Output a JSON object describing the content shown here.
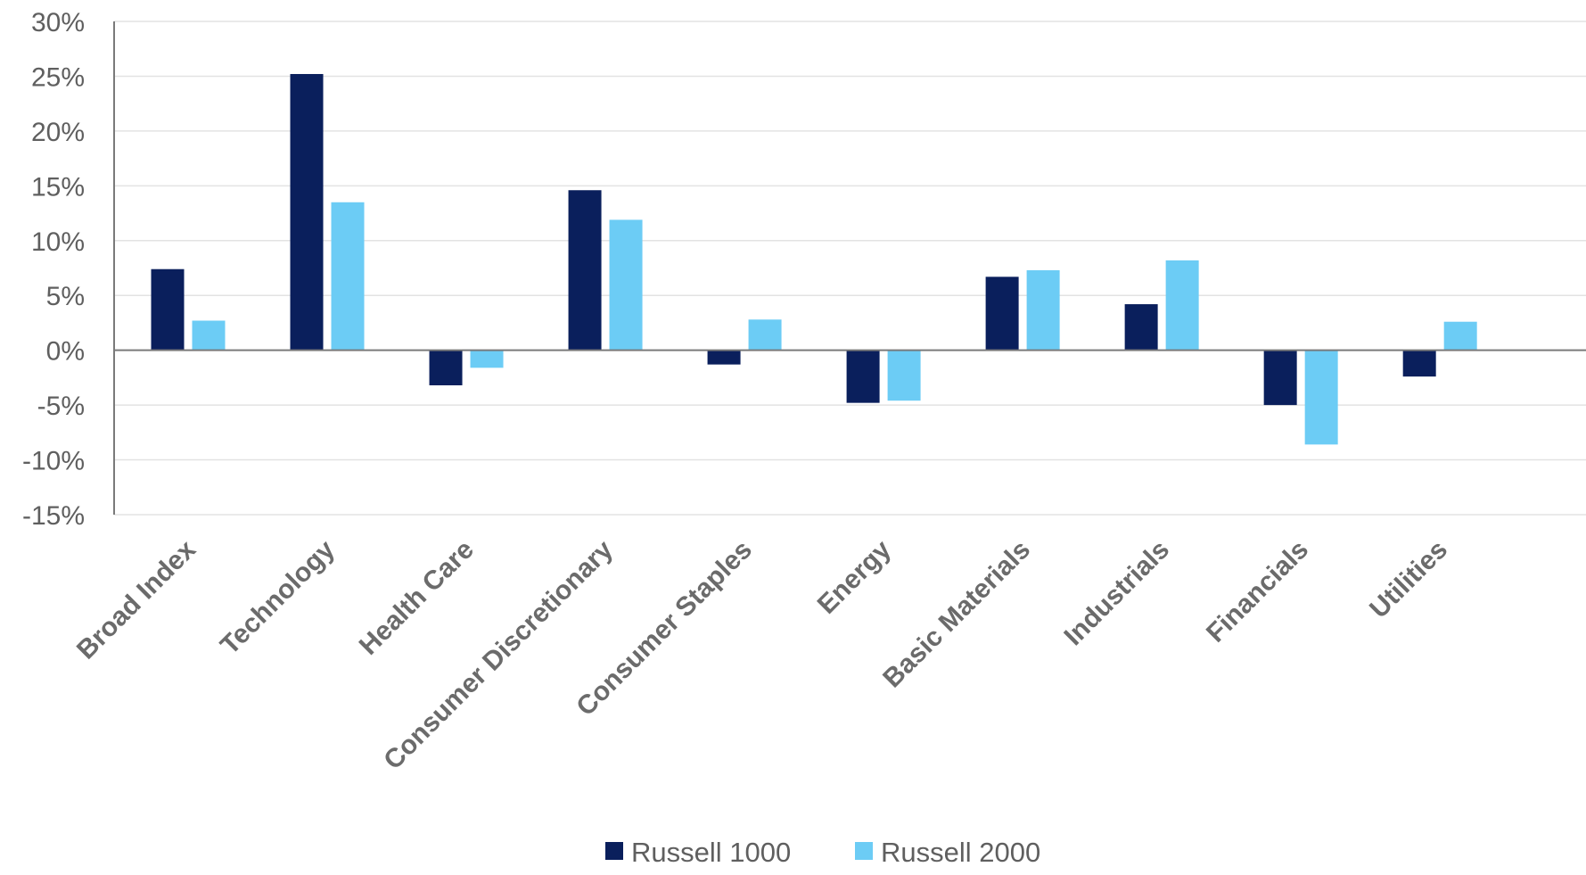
{
  "chart_data": {
    "type": "bar",
    "title": "",
    "xlabel": "",
    "ylabel": "",
    "categories": [
      "Broad Index",
      "Technology",
      "Health Care",
      "Consumer Discretionary",
      "Consumer Staples",
      "Energy",
      "Basic Materials",
      "Industrials",
      "Financials",
      "Utilities"
    ],
    "series": [
      {
        "name": "Russell 1000",
        "color": "#0a1f5c",
        "values": [
          7.4,
          25.2,
          -3.2,
          14.6,
          -1.3,
          -4.8,
          6.7,
          4.2,
          -5.0,
          -2.4
        ]
      },
      {
        "name": "Russell 2000",
        "color": "#6cccf5",
        "values": [
          2.7,
          13.5,
          -1.6,
          11.9,
          2.8,
          -4.6,
          7.3,
          8.2,
          -8.6,
          2.6
        ]
      }
    ],
    "ylim": [
      -15,
      30
    ],
    "yticks": [
      30,
      25,
      20,
      15,
      10,
      5,
      0,
      -5,
      -10,
      -15
    ],
    "ytick_labels": [
      "30%",
      "25%",
      "20%",
      "15%",
      "10%",
      "5%",
      "0%",
      "-5%",
      "-10%",
      "-15%"
    ],
    "grid": true,
    "legend_position": "bottom-center"
  }
}
